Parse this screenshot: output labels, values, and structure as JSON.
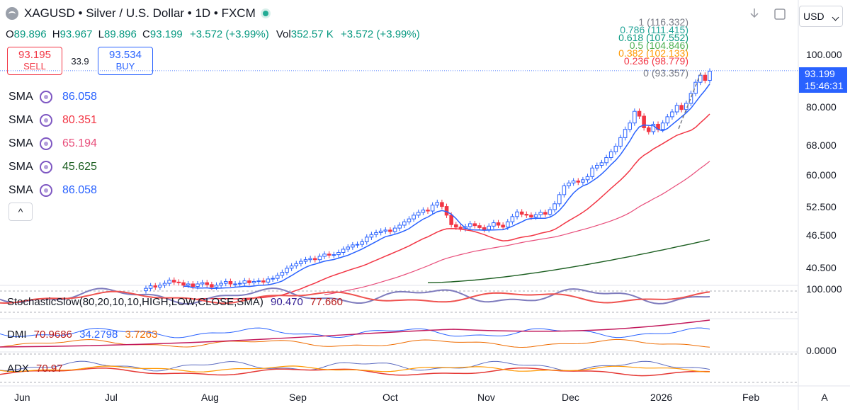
{
  "header": {
    "title": "XAGUSD • Silver / U.S. Dollar • 1D • FXCM",
    "ohlc": {
      "o_label": "O",
      "o": "89.896",
      "h_label": "H",
      "h": "93.967",
      "l_label": "L",
      "l": "89.896",
      "c_label": "C",
      "c": "93.199",
      "change": "+3.572 (+3.99%)",
      "vol_label": "Vol",
      "vol": "352.57 K",
      "vol_change": "+3.572 (+3.99%)"
    }
  },
  "trade": {
    "sell_price": "93.195",
    "sell_label": "SELL",
    "spread": "33.9",
    "buy_price": "93.534",
    "buy_label": "BUY"
  },
  "sma": [
    {
      "label": "SMA",
      "value": "86.058",
      "color": "#2962ff"
    },
    {
      "label": "SMA",
      "value": "80.351",
      "color": "#f23645"
    },
    {
      "label": "SMA",
      "value": "65.194",
      "color": "#e84d7a"
    },
    {
      "label": "SMA",
      "value": "45.625",
      "color": "#1b5e20"
    },
    {
      "label": "SMA",
      "value": "86.058",
      "color": "#2962ff"
    }
  ],
  "collapse_icon": "chevron-up-icon",
  "collapse_glyph": "^",
  "indicators": {
    "stoch": {
      "name": "StochasticSlow(80,20,10,10,HIGH,LOW,CLOSE,SMA)",
      "v1": "90.470",
      "v2": "77.660"
    },
    "dmi": {
      "name": "DMI",
      "v1": "70.9686",
      "v2": "34.2798",
      "v3": "3.7263"
    },
    "adx": {
      "name": "ADX",
      "v1": "70.97"
    }
  },
  "fib_levels": [
    {
      "label": "1 (116.332)",
      "color": "#787b86",
      "value": 116.332
    },
    {
      "label": "0.786 (111.415)",
      "color": "#26a69a",
      "value": 111.415
    },
    {
      "label": "0.618 (107.552)",
      "color": "#089981",
      "value": 107.552
    },
    {
      "label": "0.5 (104.846)",
      "color": "#4caf50",
      "value": 104.846
    },
    {
      "label": "0.382 (102.133)",
      "color": "#ff9800",
      "value": 102.133
    },
    {
      "label": "0.236 (98.779)",
      "color": "#f23645",
      "value": 98.779
    },
    {
      "label": "0 (93.357)",
      "color": "#787b86",
      "value": 93.357
    }
  ],
  "price_axis": {
    "currency": "USD",
    "ticks": [
      "100.000",
      "80.000",
      "68.000",
      "60.000",
      "52.500",
      "46.500",
      "40.500"
    ],
    "last_price": "93.199",
    "countdown": "15:46:31",
    "osc_ticks": [
      "100.000",
      "0.0000"
    ],
    "auto_label": "A"
  },
  "time_axis": [
    "Jun",
    "Jul",
    "Aug",
    "Sep",
    "Oct",
    "Nov",
    "Dec",
    "2026",
    "Feb"
  ],
  "toolbar_icons": [
    "download-icon",
    "fullscreen-icon"
  ],
  "colors": {
    "up": "#2962ff",
    "down": "#f23645",
    "accent": "#2962ff"
  },
  "chart_data": {
    "type": "candlestick",
    "symbol": "XAGUSD",
    "timeframe": "1D",
    "x_range": [
      "Jun",
      "Feb"
    ],
    "y_scale": "log",
    "ylim": [
      38,
      120
    ],
    "closes": [
      37.1,
      37.5,
      37.3,
      37.6,
      37.9,
      38.4,
      38.1,
      38.0,
      37.6,
      37.8,
      37.4,
      37.8,
      38.0,
      37.7,
      37.3,
      37.6,
      37.9,
      38.2,
      37.8,
      37.8,
      37.9,
      38.3,
      38.0,
      38.2,
      38.3,
      38.1,
      38.6,
      38.7,
      39.2,
      39.7,
      40.4,
      40.8,
      41.2,
      41.6,
      41.9,
      42.1,
      41.9,
      42.5,
      42.9,
      42.7,
      42.8,
      43.2,
      43.8,
      44.2,
      44.6,
      44.7,
      45.2,
      46.1,
      46.6,
      47.0,
      47.3,
      47.5,
      47.2,
      47.9,
      48.5,
      49.2,
      49.8,
      50.6,
      51.2,
      51.7,
      51.5,
      52.8,
      53.4,
      52.5,
      50.6,
      48.6,
      48.1,
      47.8,
      48.2,
      48.8,
      48.4,
      48.0,
      47.6,
      48.3,
      49.0,
      48.5,
      48.1,
      49.2,
      50.3,
      51.3,
      50.8,
      50.6,
      50.2,
      50.7,
      51.2,
      50.8,
      51.8,
      53.1,
      55.2,
      57.3,
      58.0,
      58.5,
      58.2,
      58.8,
      59.6,
      61.8,
      62.5,
      63.2,
      64.6,
      66.2,
      67.8,
      70.3,
      72.8,
      74.8,
      78.6,
      77.0,
      73.3,
      72.1,
      74.4,
      72.8,
      74.8,
      76.8,
      78.4,
      80.6,
      79.2,
      81.3,
      84.8,
      88.9,
      91.6,
      89.6,
      93.2
    ],
    "sma_values_last": {
      "sma1": 86.058,
      "sma2": 80.351,
      "sma3": 65.194,
      "sma4": 45.625,
      "sma5": 86.058
    },
    "stoch": {
      "k": 90.47,
      "d": 77.66,
      "range": [
        0,
        100
      ]
    },
    "dmi": {
      "adx": 70.9686,
      "plus_di": 34.2798,
      "minus_di": 3.7263
    },
    "adx": 70.97
  }
}
